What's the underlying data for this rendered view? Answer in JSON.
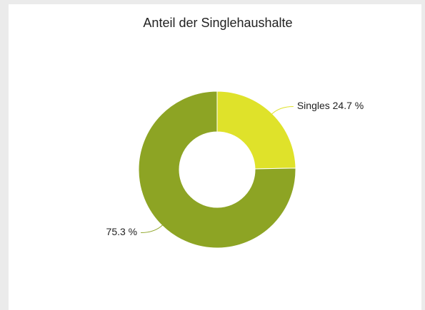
{
  "chart_data": {
    "type": "donut",
    "title": "Anteil der Singlehaushalte",
    "values": [
      24.7,
      75.3
    ],
    "value_labels": [
      "Singles 24.7 %",
      "75.3 %"
    ],
    "colors": [
      "#dfe22a",
      "#8da424"
    ]
  }
}
